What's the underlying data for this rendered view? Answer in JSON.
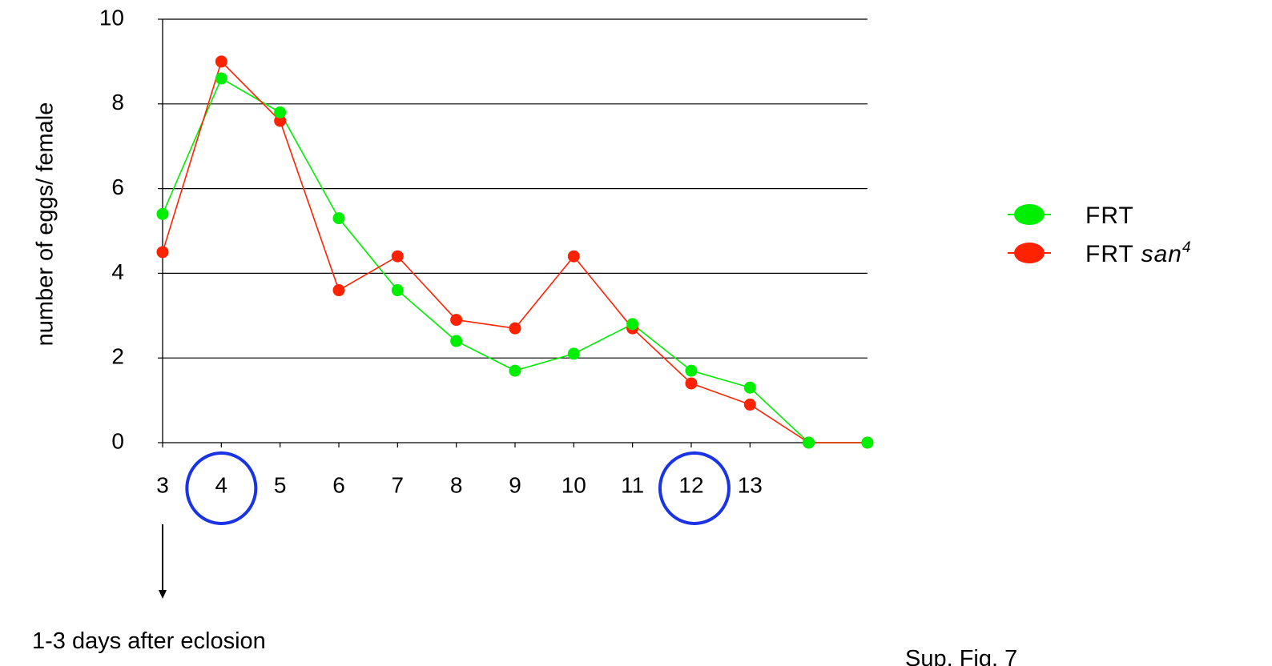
{
  "chart_data": {
    "type": "line",
    "ylabel": "number of eggs/ female",
    "ylim": [
      0,
      10
    ],
    "y_ticks": [
      "0",
      "2",
      "4",
      "6",
      "8",
      "10"
    ],
    "x_tick_labels": [
      "3",
      "4",
      "5",
      "6",
      "7",
      "8",
      "9",
      "10",
      "11",
      "12",
      "13",
      "",
      ""
    ],
    "grid": "horizontal",
    "legend_position": "right",
    "series": [
      {
        "name": "FRT",
        "color": "#00ee00",
        "values": [
          5.4,
          8.6,
          7.8,
          5.3,
          3.6,
          2.4,
          1.7,
          2.1,
          2.8,
          1.7,
          1.3,
          0,
          0
        ]
      },
      {
        "name": "FRT san4",
        "name_prefix": "FRT",
        "name_italic": "san",
        "name_sup": "4",
        "color": "#ff2200",
        "values": [
          4.5,
          9.0,
          7.6,
          3.6,
          4.4,
          2.9,
          2.7,
          4.4,
          2.7,
          1.4,
          0.9,
          0,
          0
        ]
      }
    ],
    "highlighted_ticks": [
      "4",
      "12"
    ],
    "highlight_color": "#1a33e6",
    "annotation": "1-3 days after eclosion",
    "footer": "Sup. Fig. 7"
  }
}
